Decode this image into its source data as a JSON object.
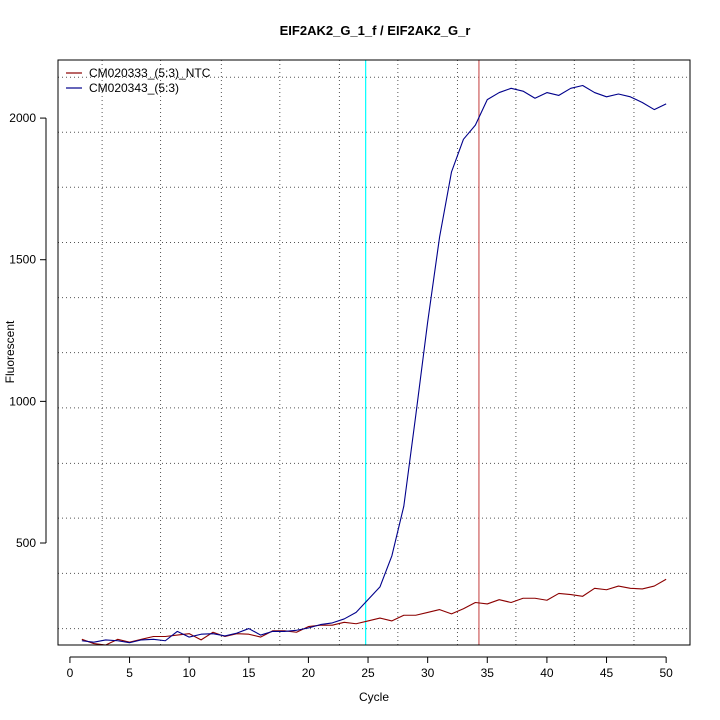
{
  "chart_data": {
    "type": "line",
    "title": "EIF2AK2_G_1_f / EIF2AK2_G_r",
    "xlabel": "Cycle",
    "ylabel": "Fluorescent",
    "xlim": [
      -1,
      52
    ],
    "ylim": [
      140,
      2205
    ],
    "xticks": [
      0,
      5,
      10,
      15,
      20,
      25,
      30,
      35,
      40,
      45,
      50
    ],
    "yticks": [
      500,
      1000,
      1500,
      2000
    ],
    "grid": true,
    "grid_style": "dotted",
    "x_gridlines": [
      2.7,
      7.6,
      12.7,
      17.6,
      22.6,
      27.5,
      32.5,
      37.4,
      42.3,
      47.3
    ],
    "y_gridlines": [
      198,
      393,
      588,
      781,
      977,
      1172,
      1366,
      1561,
      1756,
      1950,
      2144
    ],
    "legend_position": "top-left",
    "threshold_lines": [
      {
        "x": 24.8,
        "color": "#00ffff"
      },
      {
        "x": 34.3,
        "color": "#cd5c5c"
      }
    ],
    "x": [
      1,
      2,
      3,
      4,
      5,
      6,
      7,
      8,
      9,
      10,
      11,
      12,
      13,
      14,
      15,
      16,
      17,
      18,
      19,
      20,
      21,
      22,
      23,
      24,
      25,
      26,
      27,
      28,
      29,
      30,
      31,
      32,
      33,
      34,
      35,
      36,
      37,
      38,
      39,
      40,
      41,
      42,
      43,
      44,
      45,
      46,
      47,
      48,
      49,
      50
    ],
    "series": [
      {
        "name": "CM020333_(5:3)_NTC",
        "color": "#8b0000",
        "values": [
          160,
          145,
          140,
          160,
          150,
          160,
          170,
          170,
          175,
          180,
          158,
          185,
          170,
          180,
          178,
          168,
          190,
          190,
          185,
          205,
          210,
          210,
          220,
          215,
          225,
          235,
          225,
          245,
          245,
          255,
          265,
          250,
          268,
          290,
          285,
          300,
          290,
          305,
          305,
          298,
          322,
          318,
          312,
          340,
          335,
          348,
          340,
          338,
          348,
          372
        ]
      },
      {
        "name": "CM020343_(5:3)",
        "color": "#00008b",
        "values": [
          155,
          150,
          158,
          155,
          148,
          158,
          160,
          155,
          188,
          168,
          178,
          180,
          172,
          182,
          198,
          175,
          188,
          188,
          192,
          200,
          212,
          218,
          232,
          255,
          300,
          345,
          455,
          630,
          950,
          1280,
          1580,
          1810,
          1925,
          1975,
          2065,
          2090,
          2105,
          2095,
          2070,
          2090,
          2080,
          2105,
          2115,
          2090,
          2075,
          2085,
          2075,
          2055,
          2030,
          2050
        ]
      }
    ]
  }
}
